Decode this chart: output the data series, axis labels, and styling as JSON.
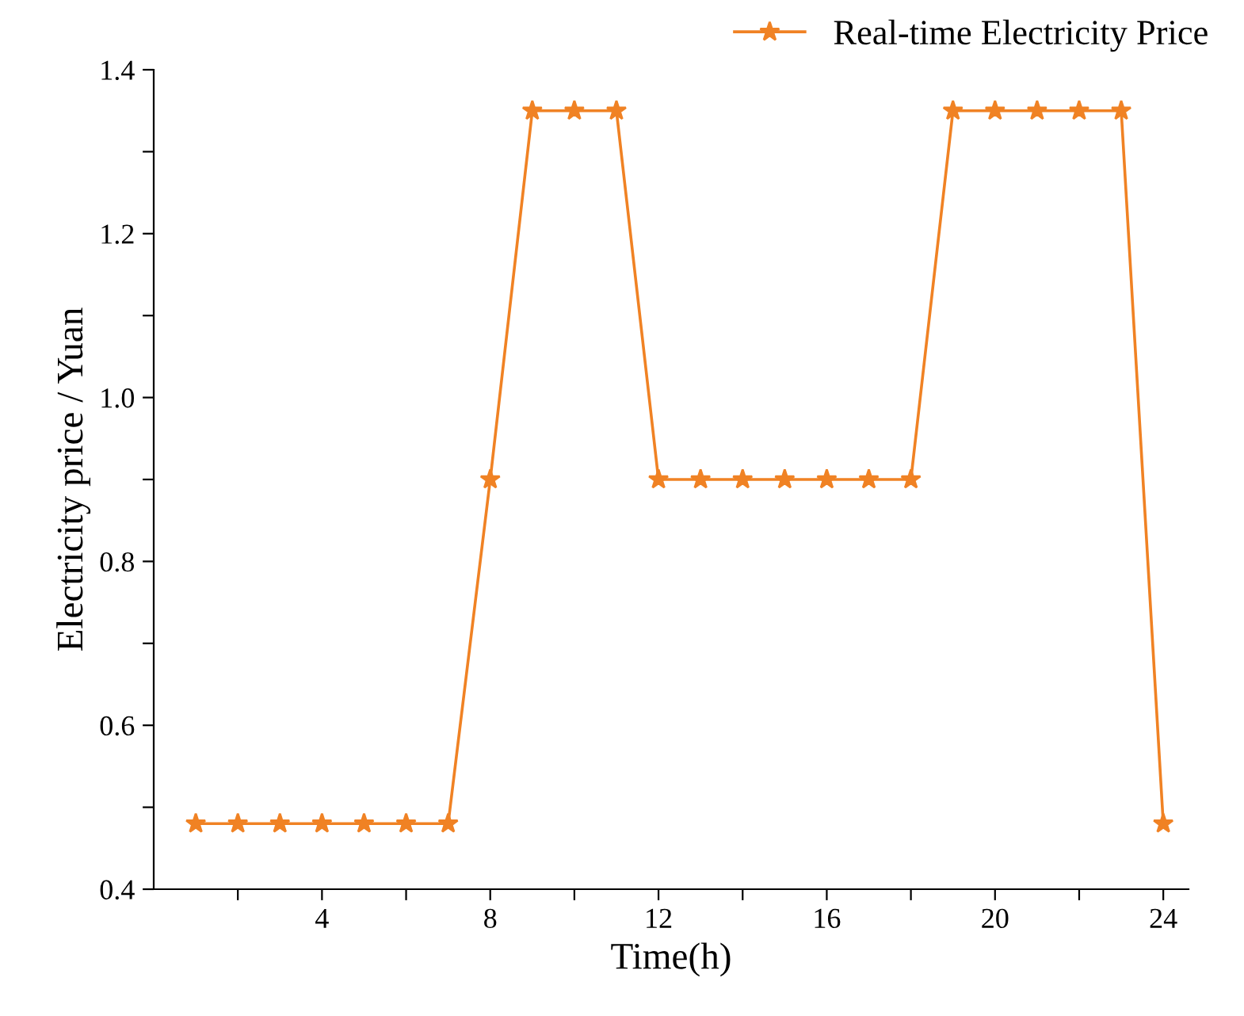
{
  "chart_data": {
    "type": "line",
    "xlabel": "Time(h)",
    "ylabel": "Electricity price / Yuan",
    "x": [
      1,
      2,
      3,
      4,
      5,
      6,
      7,
      8,
      9,
      10,
      11,
      12,
      13,
      14,
      15,
      16,
      17,
      18,
      19,
      20,
      21,
      22,
      23,
      24
    ],
    "series": [
      {
        "name": "Real-time Electricity Price",
        "color": "#f08224",
        "values": [
          0.48,
          0.48,
          0.48,
          0.48,
          0.48,
          0.48,
          0.48,
          0.9,
          1.35,
          1.35,
          1.35,
          0.9,
          0.9,
          0.9,
          0.9,
          0.9,
          0.9,
          0.9,
          1.35,
          1.35,
          1.35,
          1.35,
          1.35,
          0.48
        ]
      }
    ],
    "xlim": [
      0,
      24.6
    ],
    "ylim": [
      0.4,
      1.4
    ],
    "xticks": [
      {
        "value": 2,
        "label": null
      },
      4,
      {
        "value": 6,
        "label": null
      },
      8,
      {
        "value": 10,
        "label": null
      },
      12,
      {
        "value": 14,
        "label": null
      },
      16,
      {
        "value": 18,
        "label": null
      },
      20,
      {
        "value": 22,
        "label": null
      },
      24
    ],
    "yticks": [
      0.4,
      {
        "value": 0.5,
        "label": null
      },
      0.6,
      {
        "value": 0.7,
        "label": null
      },
      0.8,
      {
        "value": 0.9,
        "label": null
      },
      {
        "value": 1.0,
        "label": "1.0"
      },
      {
        "value": 1.1,
        "label": null
      },
      1.2,
      {
        "value": 1.3,
        "label": null
      },
      1.4
    ],
    "marker": "star",
    "line_style": "solid",
    "grid": false,
    "legend": "top right"
  }
}
